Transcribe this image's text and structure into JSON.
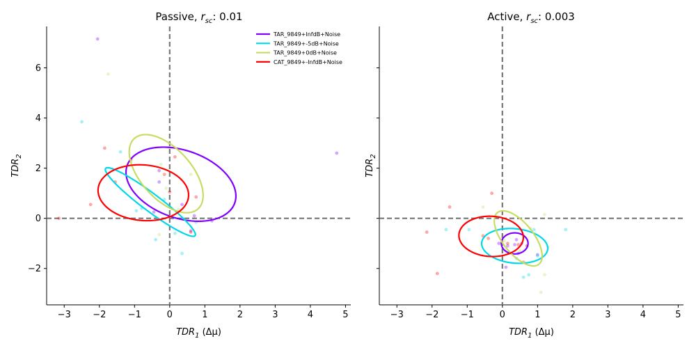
{
  "chart_data": [
    {
      "type": "scatter",
      "title": "Passive, r_sc: 0.01",
      "title_prefix": "Passive, ",
      "title_r": "r",
      "title_sub": "sc",
      "title_value": ": 0.01",
      "xlabel": "TDR_1 (Δμ)",
      "ylabel": "TDR_2",
      "xlim": [
        -3.5,
        5.15
      ],
      "ylim": [
        -3.45,
        7.65
      ],
      "xticks": [
        -3,
        -2,
        -1,
        0,
        1,
        2,
        3,
        4,
        5
      ],
      "yticks": [
        -2,
        0,
        2,
        4,
        6
      ],
      "reference_lines": {
        "x": 0,
        "y": 0
      },
      "legend_position": "top-right",
      "series": [
        {
          "name": "TAR_9849+InfdB+Noise",
          "color": "#7f00ff",
          "ellipse": {
            "cx": 0.32,
            "cy": 1.36,
            "rx": 1.75,
            "ry": 1.25,
            "angle": -40
          },
          "points": [
            [
              -2.05,
              7.15
            ],
            [
              4.75,
              2.6
            ],
            [
              -0.3,
              1.9
            ],
            [
              -0.3,
              1.45
            ],
            [
              -0.45,
              0.25
            ],
            [
              0.35,
              0.55
            ],
            [
              0.7,
              0.1
            ],
            [
              1.2,
              -0.1
            ],
            [
              0.6,
              -0.5
            ]
          ]
        },
        {
          "name": "TAR_9849+-5dB+Noise",
          "color": "#00d8e8",
          "ellipse": {
            "cx": -0.55,
            "cy": 0.65,
            "rx": 1.85,
            "ry": 0.3,
            "angle": -47
          },
          "points": [
            [
              -2.5,
              3.85
            ],
            [
              -1.4,
              2.65
            ],
            [
              -0.8,
              0.4
            ],
            [
              -0.4,
              -0.85
            ],
            [
              0.35,
              -1.4
            ],
            [
              0.75,
              -0.15
            ],
            [
              -0.15,
              0.75
            ],
            [
              -0.95,
              0.3
            ],
            [
              0.15,
              -0.6
            ]
          ]
        },
        {
          "name": "TAR_9849+0dB+Noise",
          "color": "#c8dc64",
          "ellipse": {
            "cx": -0.1,
            "cy": 1.78,
            "rx": 1.7,
            "ry": 0.8,
            "angle": -63
          },
          "points": [
            [
              -1.75,
              5.75
            ],
            [
              -0.25,
              2.15
            ],
            [
              0.6,
              1.75
            ],
            [
              -0.3,
              -0.65
            ],
            [
              -0.1,
              1.2
            ],
            [
              0.25,
              0.35
            ],
            [
              -1.1,
              2.25
            ]
          ]
        },
        {
          "name": "CAT_9849+-InfdB+Noise",
          "color": "#ff0000",
          "ellipse": {
            "cx": -0.75,
            "cy": 1.02,
            "rx": 1.3,
            "ry": 1.1,
            "angle": -15
          },
          "points": [
            [
              -3.15,
              0.0
            ],
            [
              -1.85,
              2.8
            ],
            [
              -1.1,
              2.35
            ],
            [
              -2.25,
              0.55
            ],
            [
              -1.55,
              1.45
            ],
            [
              0.15,
              2.45
            ],
            [
              0.75,
              0.85
            ],
            [
              0.0,
              1.05
            ],
            [
              -0.15,
              1.75
            ],
            [
              0.6,
              -0.55
            ]
          ]
        }
      ]
    },
    {
      "type": "scatter",
      "title": "Active, r_sc: 0.003",
      "title_prefix": "Active, ",
      "title_r": "r",
      "title_sub": "sc",
      "title_value": ": 0.003",
      "xlabel": "TDR_1 (Δμ)",
      "ylabel": "TDR_2",
      "xlim": [
        -3.5,
        5.15
      ],
      "ylim": [
        -3.45,
        7.65
      ],
      "xticks": [
        -3,
        -2,
        -1,
        0,
        1,
        2,
        3,
        4,
        5
      ],
      "yticks": [
        -2,
        0,
        2,
        4,
        6
      ],
      "reference_lines": {
        "x": 0,
        "y": 0
      },
      "series": [
        {
          "name": "TAR_9849+InfdB+Noise",
          "color": "#7f00ff",
          "ellipse": {
            "cx": 0.35,
            "cy": -1.0,
            "rx": 0.38,
            "ry": 0.42,
            "angle": 0
          },
          "points": [
            [
              -0.1,
              -1.0
            ],
            [
              0.15,
              -1.1
            ],
            [
              0.4,
              -0.85
            ],
            [
              0.55,
              -1.0
            ],
            [
              1.0,
              -1.45
            ],
            [
              0.1,
              -1.95
            ],
            [
              0.45,
              -1.4
            ],
            [
              0.35,
              -1.05
            ]
          ]
        },
        {
          "name": "TAR_9849+-5dB+Noise",
          "color": "#00d8e8",
          "ellipse": {
            "cx": 0.35,
            "cy": -1.1,
            "rx": 0.95,
            "ry": 0.68,
            "angle": -12
          },
          "points": [
            [
              -1.6,
              -0.45
            ],
            [
              -0.95,
              -0.45
            ],
            [
              1.8,
              -0.45
            ],
            [
              0.6,
              -2.35
            ],
            [
              0.75,
              -2.25
            ],
            [
              0.9,
              -0.45
            ],
            [
              1.0,
              -1.5
            ],
            [
              0.4,
              -1.6
            ]
          ]
        },
        {
          "name": "TAR_9849+0dB+Noise",
          "color": "#c8dc64",
          "ellipse": {
            "cx": 0.45,
            "cy": -0.8,
            "rx": 1.2,
            "ry": 0.48,
            "angle": -64
          },
          "points": [
            [
              -0.55,
              0.45
            ],
            [
              1.2,
              0.15
            ],
            [
              1.3,
              -1.15
            ],
            [
              1.2,
              -2.25
            ],
            [
              1.1,
              -2.95
            ],
            [
              0.7,
              -1.1
            ],
            [
              0.8,
              -0.4
            ],
            [
              0.05,
              -0.9
            ],
            [
              0.5,
              -1.3
            ]
          ]
        },
        {
          "name": "CAT_9849+-InfdB+Noise",
          "color": "#ff0000",
          "ellipse": {
            "cx": -0.32,
            "cy": -0.72,
            "rx": 0.92,
            "ry": 0.8,
            "angle": -10
          },
          "points": [
            [
              -0.3,
              1.0
            ],
            [
              -1.5,
              0.45
            ],
            [
              -2.15,
              -0.55
            ],
            [
              -1.85,
              -2.2
            ],
            [
              -0.4,
              -0.8
            ],
            [
              -0.55,
              -0.7
            ],
            [
              0.15,
              -1.0
            ],
            [
              0.7,
              -1.1
            ],
            [
              0.6,
              -1.75
            ],
            [
              0.45,
              -1.05
            ]
          ]
        }
      ]
    }
  ]
}
